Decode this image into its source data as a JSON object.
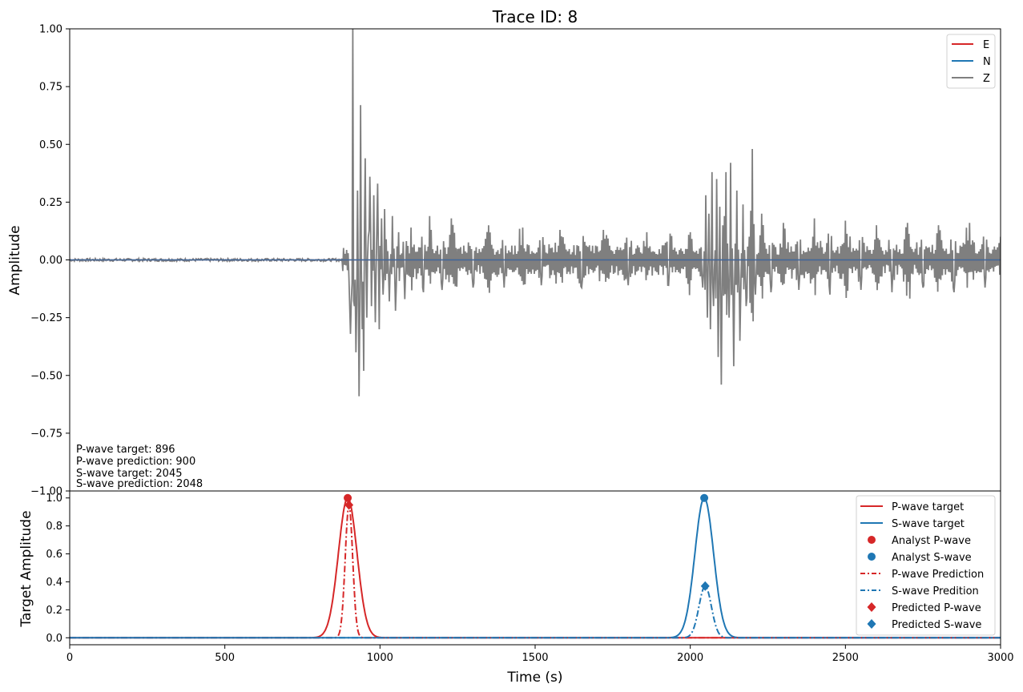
{
  "figure": {
    "title": "Trace ID: 8"
  },
  "chart_data": [
    {
      "type": "line",
      "title": "Trace ID: 8",
      "xlabel": "",
      "ylabel": "Amplitude",
      "xlim": [
        0,
        3000
      ],
      "ylim": [
        -1.0,
        1.0
      ],
      "yticks": [
        -1.0,
        -0.75,
        -0.5,
        -0.25,
        0.0,
        0.25,
        0.5,
        0.75,
        1.0
      ],
      "ytick_labels": [
        "−1.00",
        "−0.75",
        "−0.50",
        "−0.25",
        "0.00",
        "0.25",
        "0.50",
        "0.75",
        "1.00"
      ],
      "grid": false,
      "legend_position": "top-right",
      "series": [
        {
          "name": "E",
          "color": "#d62728",
          "flat_value": 0.0
        },
        {
          "name": "N",
          "color": "#1f77b4",
          "flat_value": 0.0
        },
        {
          "name": "Z",
          "color": "#7f7f7f",
          "description_points": [
            [
              0,
              0.0
            ],
            [
              200,
              0.0
            ],
            [
              880,
              0.0
            ],
            [
              900,
              -0.08
            ],
            [
              905,
              -0.32
            ],
            [
              910,
              -0.1
            ],
            [
              913,
              1.0
            ],
            [
              917,
              -0.2
            ],
            [
              922,
              -0.4
            ],
            [
              928,
              0.3
            ],
            [
              932,
              -0.59
            ],
            [
              937,
              0.67
            ],
            [
              942,
              -0.3
            ],
            [
              948,
              -0.48
            ],
            [
              953,
              0.44
            ],
            [
              958,
              -0.25
            ],
            [
              963,
              0.1
            ],
            [
              968,
              0.36
            ],
            [
              973,
              -0.2
            ],
            [
              980,
              0.28
            ],
            [
              986,
              -0.27
            ],
            [
              992,
              0.33
            ],
            [
              998,
              -0.3
            ],
            [
              1005,
              0.18
            ],
            [
              1010,
              -0.15
            ],
            [
              1015,
              0.22
            ],
            [
              1030,
              -0.18
            ],
            [
              1040,
              0.19
            ],
            [
              1050,
              -0.22
            ],
            [
              1060,
              0.12
            ],
            [
              1080,
              -0.17
            ],
            [
              1100,
              0.14
            ],
            [
              1140,
              -0.14
            ],
            [
              1160,
              0.19
            ],
            [
              1200,
              -0.13
            ],
            [
              1230,
              0.18
            ],
            [
              1300,
              -0.12
            ],
            [
              1350,
              0.15
            ],
            [
              1400,
              -0.12
            ],
            [
              1460,
              0.14
            ],
            [
              1520,
              -0.11
            ],
            [
              1580,
              0.13
            ],
            [
              1650,
              -0.12
            ],
            [
              1720,
              0.13
            ],
            [
              1800,
              -0.11
            ],
            [
              1860,
              0.12
            ],
            [
              1930,
              -0.11
            ],
            [
              2000,
              0.12
            ],
            [
              2040,
              -0.12
            ],
            [
              2050,
              0.28
            ],
            [
              2055,
              -0.25
            ],
            [
              2060,
              0.2
            ],
            [
              2065,
              -0.3
            ],
            [
              2070,
              0.38
            ],
            [
              2075,
              -0.2
            ],
            [
              2085,
              0.35
            ],
            [
              2090,
              -0.42
            ],
            [
              2095,
              0.23
            ],
            [
              2100,
              -0.54
            ],
            [
              2105,
              0.15
            ],
            [
              2115,
              0.38
            ],
            [
              2125,
              -0.25
            ],
            [
              2130,
              0.42
            ],
            [
              2140,
              -0.46
            ],
            [
              2150,
              0.3
            ],
            [
              2160,
              -0.35
            ],
            [
              2170,
              0.24
            ],
            [
              2180,
              -0.2
            ],
            [
              2200,
              0.48
            ],
            [
              2210,
              -0.15
            ],
            [
              2230,
              0.2
            ],
            [
              2260,
              -0.14
            ],
            [
              2300,
              0.16
            ],
            [
              2350,
              -0.13
            ],
            [
              2400,
              0.18
            ],
            [
              2450,
              -0.15
            ],
            [
              2500,
              0.17
            ],
            [
              2550,
              -0.13
            ],
            [
              2600,
              0.15
            ],
            [
              2650,
              -0.14
            ],
            [
              2700,
              0.16
            ],
            [
              2750,
              -0.12
            ],
            [
              2800,
              0.15
            ],
            [
              2850,
              -0.14
            ],
            [
              2900,
              0.16
            ],
            [
              2950,
              -0.12
            ],
            [
              3000,
              0.1
            ]
          ]
        }
      ],
      "annotations": [
        "P-wave target: 896",
        "P-wave prediction: 900",
        "S-wave target: 2045",
        "S-wave prediction: 2048"
      ]
    },
    {
      "type": "line",
      "title": "",
      "xlabel": "Time (s)",
      "ylabel": "Target Amplitude",
      "xlim": [
        0,
        3000
      ],
      "ylim": [
        -0.05,
        1.05
      ],
      "xticks": [
        0,
        500,
        1000,
        1500,
        2000,
        2500,
        3000
      ],
      "xtick_labels": [
        "0",
        "500",
        "1000",
        "1500",
        "2000",
        "2500",
        "3000"
      ],
      "yticks": [
        0.0,
        0.2,
        0.4,
        0.6,
        0.8,
        1.0
      ],
      "ytick_labels": [
        "0.0",
        "0.2",
        "0.4",
        "0.6",
        "0.8",
        "1.0"
      ],
      "grid": false,
      "legend_position": "top-right",
      "series": [
        {
          "name": "P-wave target",
          "color": "#d62728",
          "style": "solid",
          "gaussian": {
            "center": 896,
            "sigma": 30,
            "peak": 1.0
          }
        },
        {
          "name": "S-wave target",
          "color": "#1f77b4",
          "style": "solid",
          "gaussian": {
            "center": 2045,
            "sigma": 30,
            "peak": 1.0
          }
        },
        {
          "name": "Analyst P-wave",
          "color": "#d62728",
          "style": "circle",
          "point": [
            896,
            1.0
          ]
        },
        {
          "name": "Analyst S-wave",
          "color": "#1f77b4",
          "style": "circle",
          "point": [
            2045,
            1.0
          ]
        },
        {
          "name": "P-wave Prediction",
          "color": "#d62728",
          "style": "dashdot",
          "gaussian": {
            "center": 900,
            "sigma": 12,
            "peak": 0.95
          }
        },
        {
          "name": "S-wave Predition",
          "color": "#1f77b4",
          "style": "dashdot",
          "gaussian": {
            "center": 2048,
            "sigma": 20,
            "peak": 0.37
          }
        },
        {
          "name": "Predicted P-wave",
          "color": "#d62728",
          "style": "diamond",
          "point": [
            900,
            0.95
          ]
        },
        {
          "name": "Predicted S-wave",
          "color": "#1f77b4",
          "style": "diamond",
          "point": [
            2048,
            0.37
          ]
        }
      ]
    }
  ]
}
